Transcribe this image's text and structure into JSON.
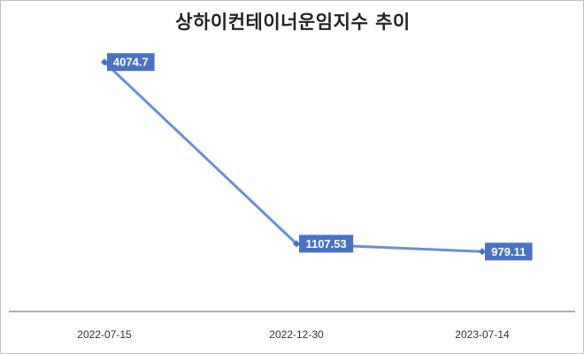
{
  "chart_data": {
    "type": "line",
    "title": "상하이컨테이너운임지수 추이",
    "categories": [
      "2022-07-15",
      "2022-12-30",
      "2023-07-14"
    ],
    "series": [
      {
        "values": [
          4074.7,
          1107.53,
          979.11
        ],
        "data_labels": [
          "4074.7",
          "1107.53",
          "979.11"
        ]
      }
    ],
    "xlabel": "",
    "ylabel": "",
    "ylim": [
      0,
      4800
    ],
    "grid": false,
    "legend": "none",
    "colors": {
      "line": "#6a8fd8",
      "marker": "#4a72c4",
      "label_bg": "#4a72c4",
      "label_text": "#ffffff",
      "axis": "#595959"
    }
  }
}
